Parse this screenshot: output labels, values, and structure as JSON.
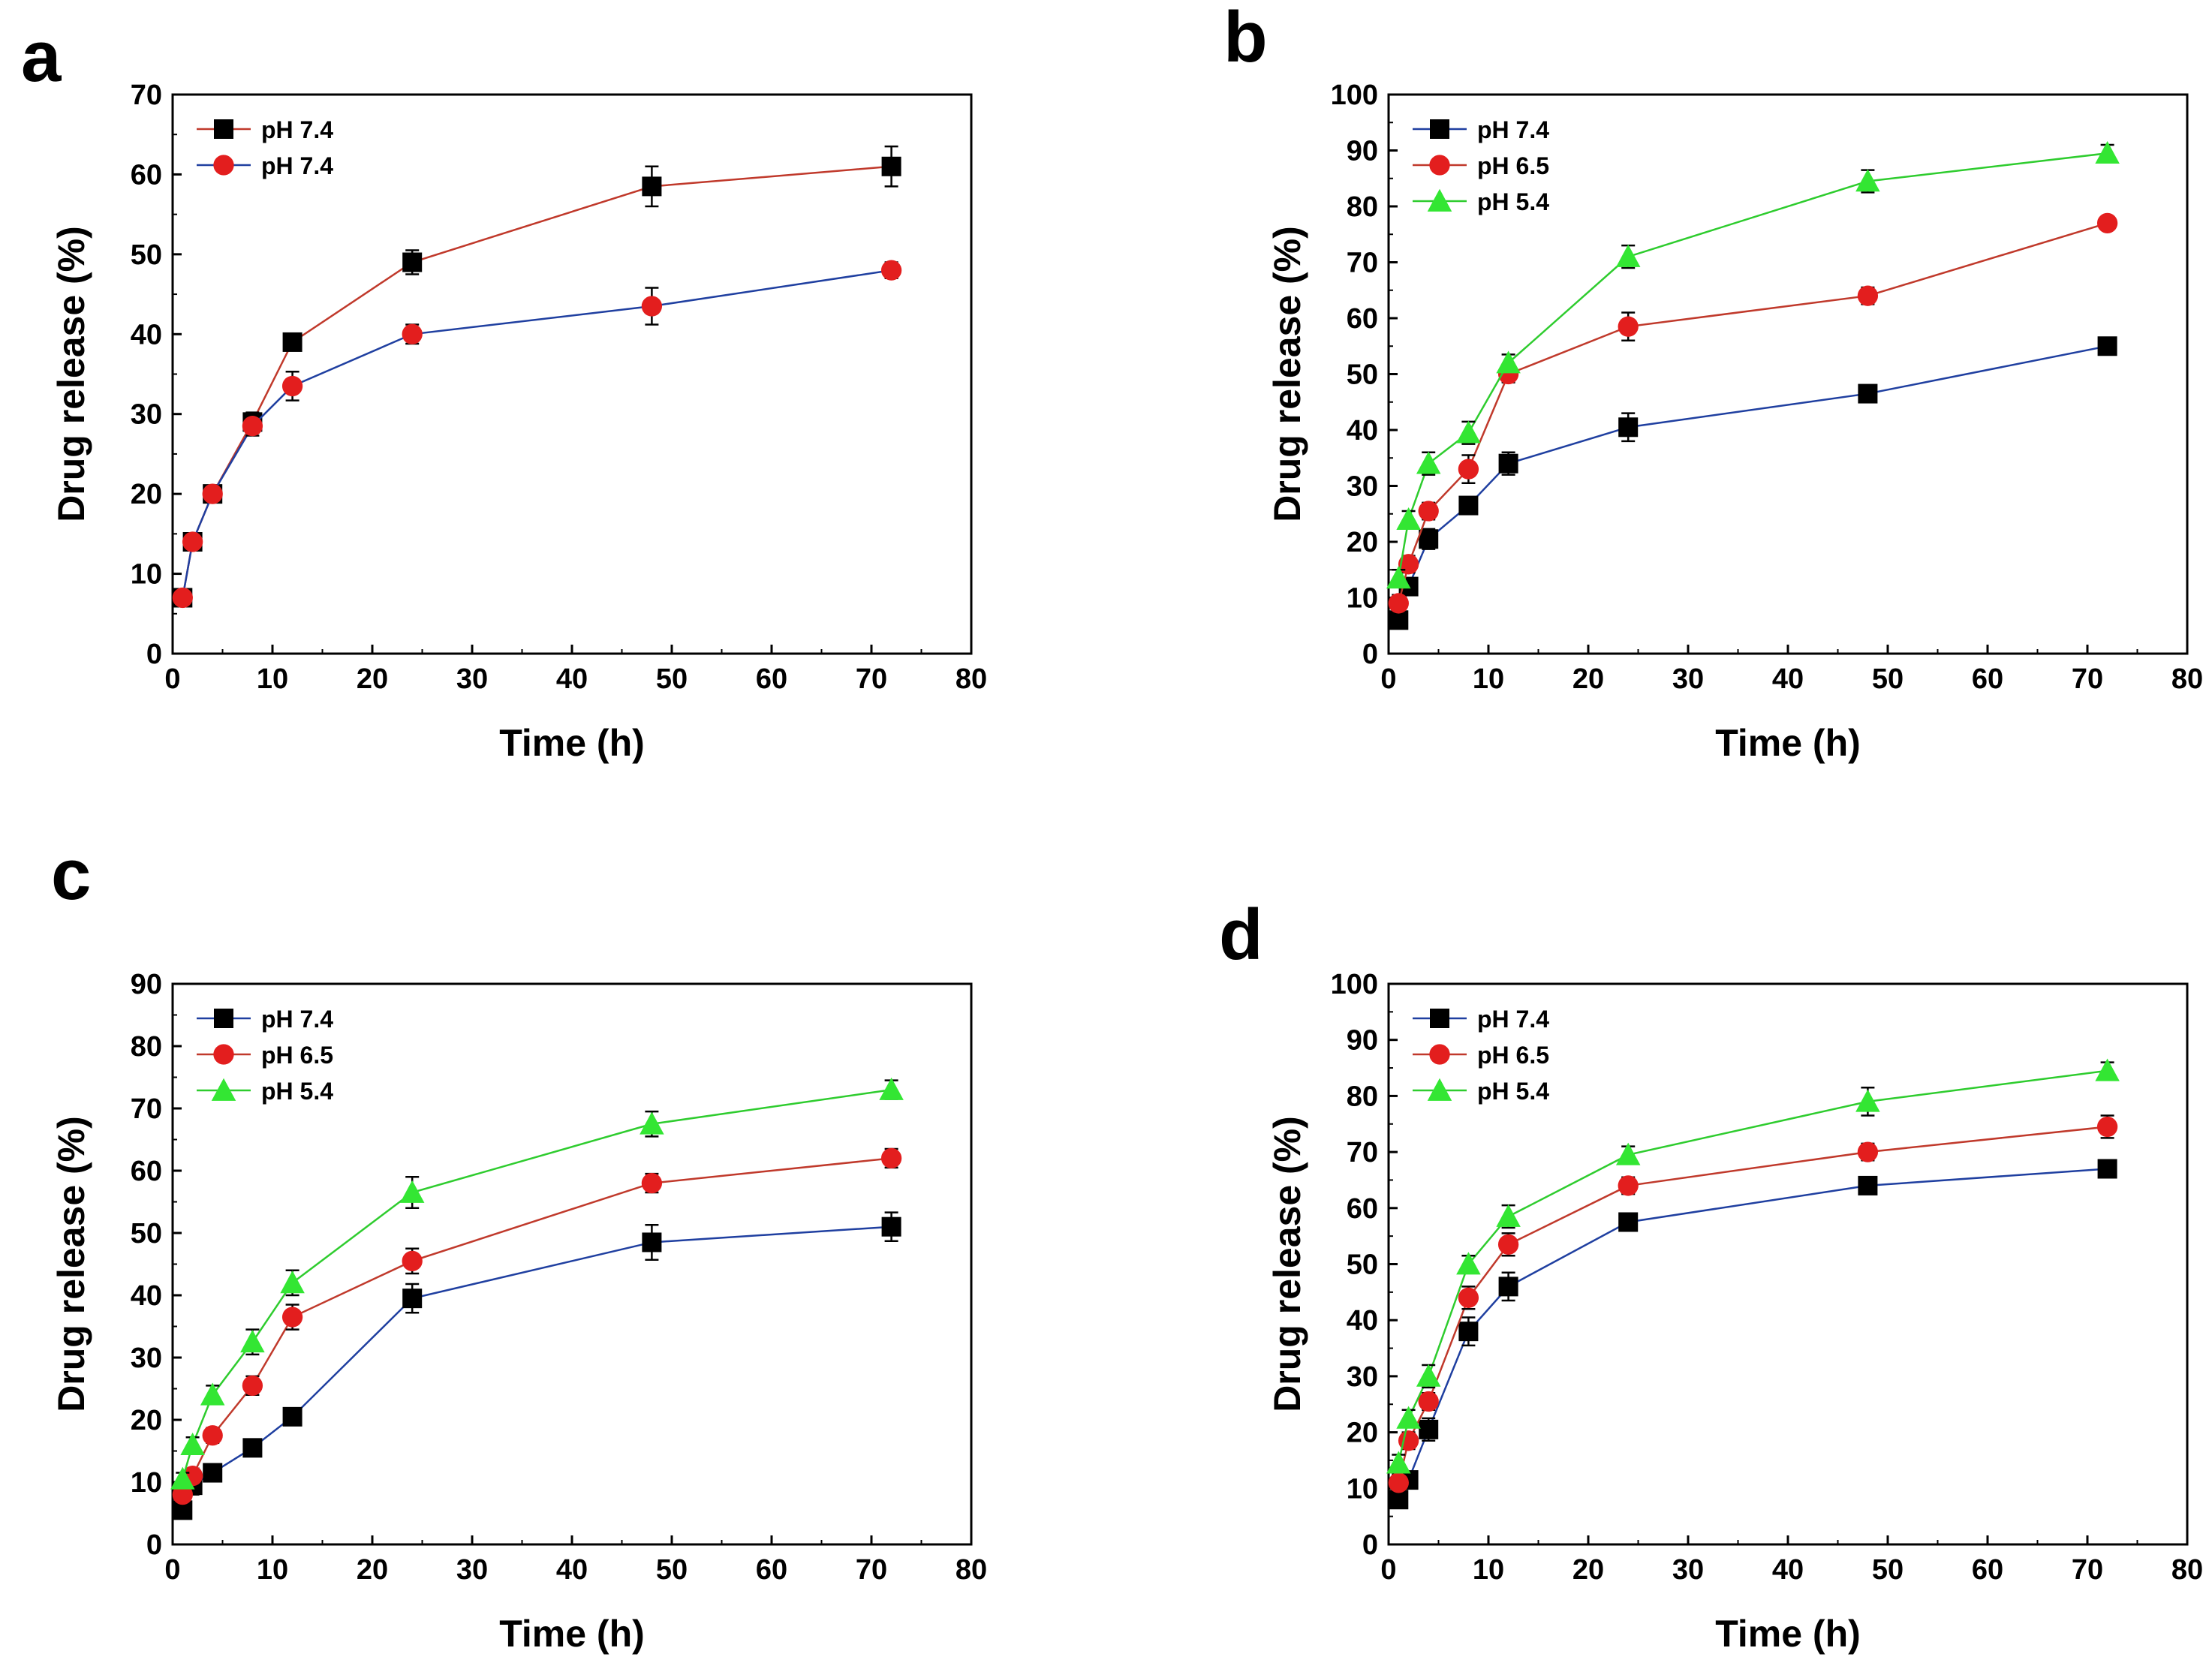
{
  "chart_data": [
    {
      "panel": "a",
      "type": "line",
      "xlabel": "Time (h)",
      "ylabel": "Drug release (%)",
      "xlim": [
        0,
        80
      ],
      "ylim": [
        0,
        70
      ],
      "xticks": [
        0,
        10,
        20,
        30,
        40,
        50,
        60,
        70,
        80
      ],
      "yticks": [
        0,
        10,
        20,
        30,
        40,
        50,
        60,
        70
      ],
      "legend_position": "top-left",
      "x": [
        1,
        2,
        4,
        8,
        12,
        24,
        48,
        72
      ],
      "series": [
        {
          "name": "pH 7.4",
          "line_color": "#c0392b",
          "marker": "square",
          "marker_color": "#000000",
          "values": [
            7,
            14,
            20,
            29,
            39,
            49,
            58.5,
            61
          ],
          "errors": [
            1,
            1,
            1,
            1.2,
            1,
            1.5,
            2.5,
            2.5
          ]
        },
        {
          "name": "pH 7.4",
          "line_color": "#1f3fa0",
          "marker": "circle",
          "marker_color": "#e31e1e",
          "values": [
            7,
            14,
            20,
            28.5,
            33.5,
            40,
            43.5,
            48
          ],
          "errors": [
            1,
            1,
            1,
            1.2,
            1.8,
            1.2,
            2.3,
            1
          ]
        }
      ]
    },
    {
      "panel": "b",
      "type": "line",
      "xlabel": "Time (h)",
      "ylabel": "Drug release (%)",
      "xlim": [
        0,
        80
      ],
      "ylim": [
        0,
        100
      ],
      "xticks": [
        0,
        10,
        20,
        30,
        40,
        50,
        60,
        70,
        80
      ],
      "yticks": [
        0,
        10,
        20,
        30,
        40,
        50,
        60,
        70,
        80,
        90,
        100
      ],
      "legend_position": "top-left",
      "x": [
        1,
        2,
        4,
        8,
        12,
        24,
        48,
        72
      ],
      "series": [
        {
          "name": "pH  7.4",
          "line_color": "#1f3fa0",
          "marker": "square",
          "marker_color": "#000000",
          "values": [
            6,
            12,
            20.5,
            26.5,
            34,
            40.5,
            46.5,
            55
          ],
          "errors": [
            1.2,
            1.5,
            1.8,
            1.5,
            2,
            2.5,
            1,
            1
          ]
        },
        {
          "name": "pH  6.5",
          "line_color": "#c0392b",
          "marker": "circle",
          "marker_color": "#e31e1e",
          "values": [
            9,
            16,
            25.5,
            33,
            50,
            58.5,
            64,
            77
          ],
          "errors": [
            1.5,
            1.5,
            1.5,
            2.5,
            1.5,
            2.5,
            1.5,
            1
          ]
        },
        {
          "name": "pH  5.4",
          "line_color": "#2ecc2e",
          "marker": "triangle",
          "marker_color": "#33e633",
          "values": [
            13.5,
            24,
            34,
            39.5,
            52,
            71,
            84.5,
            89.5
          ],
          "errors": [
            1.5,
            1.5,
            2,
            2,
            1.5,
            2,
            2,
            1.5
          ]
        }
      ]
    },
    {
      "panel": "c",
      "type": "line",
      "xlabel": "Time (h)",
      "ylabel": "Drug release (%)",
      "xlim": [
        0,
        80
      ],
      "ylim": [
        0,
        90
      ],
      "xticks": [
        0,
        10,
        20,
        30,
        40,
        50,
        60,
        70,
        80
      ],
      "yticks": [
        0,
        10,
        20,
        30,
        40,
        50,
        60,
        70,
        80,
        90
      ],
      "legend_position": "top-left",
      "x": [
        1,
        2,
        4,
        8,
        12,
        24,
        48,
        72
      ],
      "series": [
        {
          "name": "pH  7.4",
          "line_color": "#1f3fa0",
          "marker": "square",
          "marker_color": "#000000",
          "values": [
            5.5,
            9.5,
            11.5,
            15.5,
            20.5,
            39.5,
            48.5,
            51
          ],
          "errors": [
            1.2,
            1.5,
            1,
            1,
            1,
            2.3,
            2.8,
            2.3
          ]
        },
        {
          "name": "pH  6.5",
          "line_color": "#c0392b",
          "marker": "circle",
          "marker_color": "#e31e1e",
          "values": [
            8,
            11,
            17.5,
            25.5,
            36.5,
            45.5,
            58,
            62
          ],
          "errors": [
            1,
            1.2,
            1.2,
            1.5,
            2,
            2,
            1.5,
            1.5
          ]
        },
        {
          "name": "pH  5.4",
          "line_color": "#2ecc2e",
          "marker": "triangle",
          "marker_color": "#33e633",
          "values": [
            10.5,
            16,
            24,
            32.5,
            42,
            56.5,
            67.5,
            73
          ],
          "errors": [
            1,
            1.2,
            1.5,
            2,
            2,
            2.5,
            2,
            1.5
          ]
        }
      ]
    },
    {
      "panel": "d",
      "type": "line",
      "xlabel": "Time (h)",
      "ylabel": "Drug release (%)",
      "xlim": [
        0,
        80
      ],
      "ylim": [
        0,
        100
      ],
      "xticks": [
        0,
        10,
        20,
        30,
        40,
        50,
        60,
        70,
        80
      ],
      "yticks": [
        0,
        10,
        20,
        30,
        40,
        50,
        60,
        70,
        80,
        90,
        100
      ],
      "legend_position": "top-left",
      "x": [
        1,
        2,
        4,
        8,
        12,
        24,
        48,
        72
      ],
      "series": [
        {
          "name": "pH  7.4",
          "line_color": "#1f3fa0",
          "marker": "square",
          "marker_color": "#000000",
          "values": [
            8,
            11.5,
            20.5,
            38,
            46,
            57.5,
            64,
            67
          ],
          "errors": [
            1.5,
            1.5,
            2,
            2.5,
            2.5,
            1,
            1,
            1
          ]
        },
        {
          "name": "pH  6.5",
          "line_color": "#c0392b",
          "marker": "circle",
          "marker_color": "#e31e1e",
          "values": [
            11,
            18.5,
            25.5,
            44,
            53.5,
            64,
            70,
            74.5
          ],
          "errors": [
            1.5,
            1.5,
            1.5,
            2,
            2,
            1.5,
            1.5,
            2
          ]
        },
        {
          "name": "pH  5.4",
          "line_color": "#2ecc2e",
          "marker": "triangle",
          "marker_color": "#33e633",
          "values": [
            14.5,
            22.5,
            30,
            50,
            58.5,
            69.5,
            79,
            84.5
          ],
          "errors": [
            1.5,
            1.5,
            2,
            1.5,
            2,
            1.5,
            2.5,
            1.5
          ]
        }
      ]
    }
  ]
}
